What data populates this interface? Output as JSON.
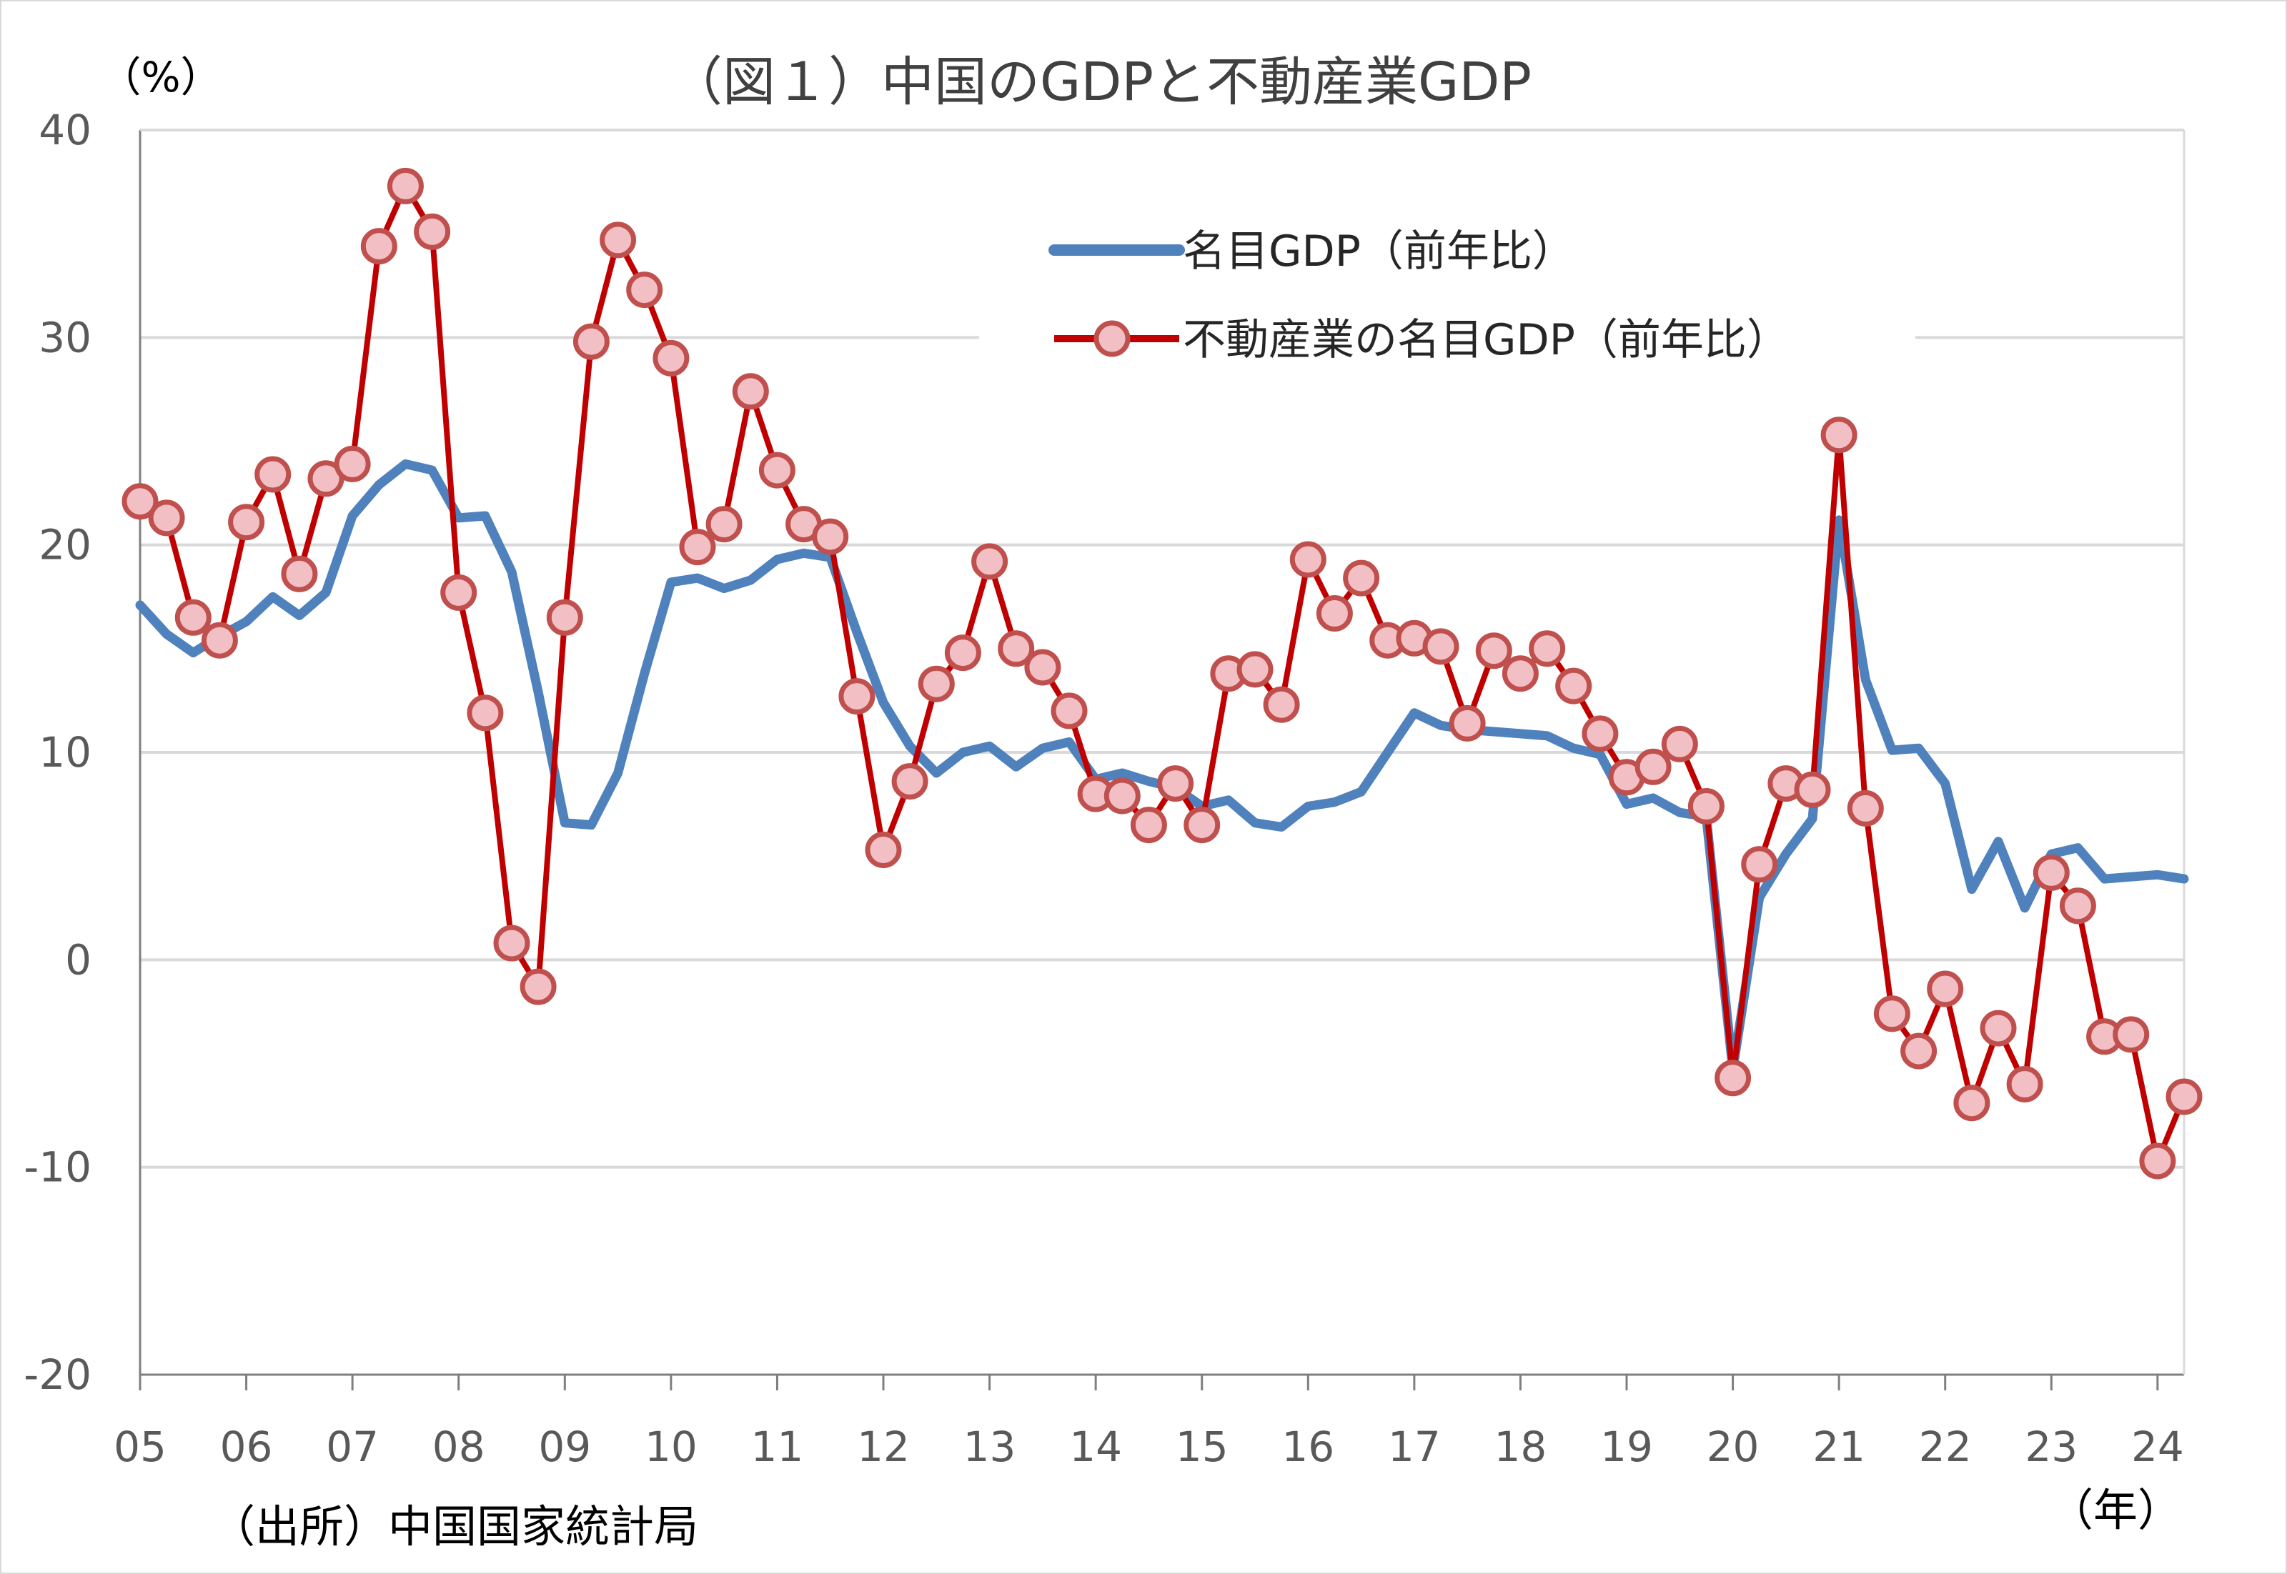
{
  "chart_data": {
    "type": "line",
    "title": "（図１）中国のGDPと不動産業GDP",
    "ylabel": "（%）",
    "xlabel": "（年）",
    "source": "（出所）中国国家統計局",
    "ylim": [
      -20,
      40
    ],
    "yticks": [
      40,
      30,
      20,
      10,
      0,
      -10,
      -20
    ],
    "ytick_labels": [
      "40",
      "30",
      "20",
      "10",
      "0",
      "-10",
      "-20"
    ],
    "xticks": [
      2005,
      2006,
      2007,
      2008,
      2009,
      2010,
      2011,
      2012,
      2013,
      2014,
      2015,
      2016,
      2017,
      2018,
      2019,
      2020,
      2021,
      2022,
      2023,
      2024
    ],
    "xtick_labels": [
      "05",
      "06",
      "07",
      "08",
      "09",
      "10",
      "11",
      "12",
      "13",
      "14",
      "15",
      "16",
      "17",
      "18",
      "19",
      "20",
      "21",
      "22",
      "23",
      "24"
    ],
    "xlim": [
      2005.0,
      2024.25
    ],
    "grid": true,
    "legend": "top-right",
    "colors": {
      "series1": "#4f81bd",
      "series2": "#c00000",
      "marker_fill": "#f2c0c4",
      "marker_edge": "#c0504d",
      "grid": "#d9d9d9",
      "axis": "#7f7f7f"
    },
    "series": [
      {
        "name": "名目GDP（前年比）",
        "x": [
          2005.0,
          2005.25,
          2005.5,
          2005.75,
          2006.0,
          2006.25,
          2006.5,
          2006.75,
          2007.0,
          2007.25,
          2007.5,
          2007.75,
          2008.0,
          2008.25,
          2008.5,
          2008.75,
          2009.0,
          2009.25,
          2009.5,
          2009.75,
          2010.0,
          2010.25,
          2010.5,
          2010.75,
          2011.0,
          2011.25,
          2011.5,
          2011.75,
          2012.0,
          2012.25,
          2012.5,
          2012.75,
          2013.0,
          2013.25,
          2013.5,
          2013.75,
          2014.0,
          2014.25,
          2014.5,
          2014.75,
          2015.0,
          2015.25,
          2015.5,
          2015.75,
          2016.0,
          2016.25,
          2016.5,
          2016.75,
          2017.0,
          2017.25,
          2017.5,
          2017.75,
          2018.0,
          2018.25,
          2018.5,
          2018.75,
          2019.0,
          2019.25,
          2019.5,
          2019.75,
          2020.0,
          2020.25,
          2020.5,
          2020.75,
          2021.0,
          2021.25,
          2021.5,
          2021.75,
          2022.0,
          2022.25,
          2022.5,
          2022.75,
          2023.0,
          2023.25,
          2023.5,
          2023.75,
          2024.0,
          2024.25
        ],
        "values": [
          17.1,
          15.7,
          14.8,
          15.6,
          16.3,
          17.5,
          16.6,
          17.7,
          21.4,
          22.9,
          23.9,
          23.6,
          21.3,
          21.4,
          18.7,
          12.9,
          6.6,
          6.5,
          9.0,
          13.8,
          18.2,
          18.4,
          17.9,
          18.3,
          19.3,
          19.6,
          19.4,
          15.8,
          12.4,
          10.3,
          9.0,
          10.0,
          10.3,
          9.3,
          10.2,
          10.5,
          8.7,
          9.0,
          8.6,
          8.3,
          7.4,
          7.7,
          6.6,
          6.4,
          7.4,
          7.6,
          8.1,
          10.0,
          11.9,
          11.3,
          11.1,
          11.0,
          10.9,
          10.8,
          10.2,
          9.9,
          7.5,
          7.8,
          7.1,
          6.9,
          -5.3,
          3.0,
          5.1,
          6.8,
          21.2,
          13.5,
          10.1,
          10.2,
          8.5,
          3.4,
          5.7,
          2.5,
          5.1,
          5.4,
          3.9,
          4.0,
          4.1,
          3.9
        ]
      },
      {
        "name": "不動産業の名目GDP（前年比）",
        "x": [
          2005.0,
          2005.25,
          2005.5,
          2005.75,
          2006.0,
          2006.25,
          2006.5,
          2006.75,
          2007.0,
          2007.25,
          2007.5,
          2007.75,
          2008.0,
          2008.25,
          2008.5,
          2008.75,
          2009.0,
          2009.25,
          2009.5,
          2009.75,
          2010.0,
          2010.25,
          2010.5,
          2010.75,
          2011.0,
          2011.25,
          2011.5,
          2011.75,
          2012.0,
          2012.25,
          2012.5,
          2012.75,
          2013.0,
          2013.25,
          2013.5,
          2013.75,
          2014.0,
          2014.25,
          2014.5,
          2014.75,
          2015.0,
          2015.25,
          2015.5,
          2015.75,
          2016.0,
          2016.25,
          2016.5,
          2016.75,
          2017.0,
          2017.25,
          2017.5,
          2017.75,
          2018.0,
          2018.25,
          2018.5,
          2018.75,
          2019.0,
          2019.25,
          2019.5,
          2019.75,
          2020.0,
          2020.25,
          2020.5,
          2020.75,
          2021.0,
          2021.25,
          2021.5,
          2021.75,
          2022.0,
          2022.25,
          2022.5,
          2022.75,
          2023.0,
          2023.25,
          2023.5,
          2023.75,
          2024.0,
          2024.25
        ],
        "values": [
          22.1,
          21.3,
          16.5,
          15.4,
          21.1,
          23.4,
          18.6,
          23.2,
          23.9,
          34.4,
          37.3,
          35.1,
          17.7,
          11.9,
          0.8,
          -1.3,
          16.5,
          29.8,
          34.7,
          32.3,
          29.0,
          19.9,
          21.0,
          27.4,
          23.6,
          21.0,
          20.4,
          12.7,
          5.3,
          8.6,
          13.3,
          14.8,
          19.2,
          15.0,
          14.1,
          12.0,
          8.0,
          7.9,
          6.5,
          8.5,
          6.5,
          13.8,
          14.0,
          12.3,
          19.3,
          16.7,
          18.4,
          15.4,
          15.5,
          15.1,
          11.4,
          14.9,
          13.8,
          15.0,
          13.2,
          10.9,
          8.8,
          9.3,
          10.4,
          7.4,
          -5.7,
          4.6,
          8.5,
          8.2,
          25.3,
          7.3,
          -2.6,
          -4.4,
          -1.4,
          -6.9,
          -3.3,
          -6.0,
          4.2,
          2.6,
          -3.7,
          -3.6,
          -9.7,
          -6.6
        ]
      }
    ]
  }
}
